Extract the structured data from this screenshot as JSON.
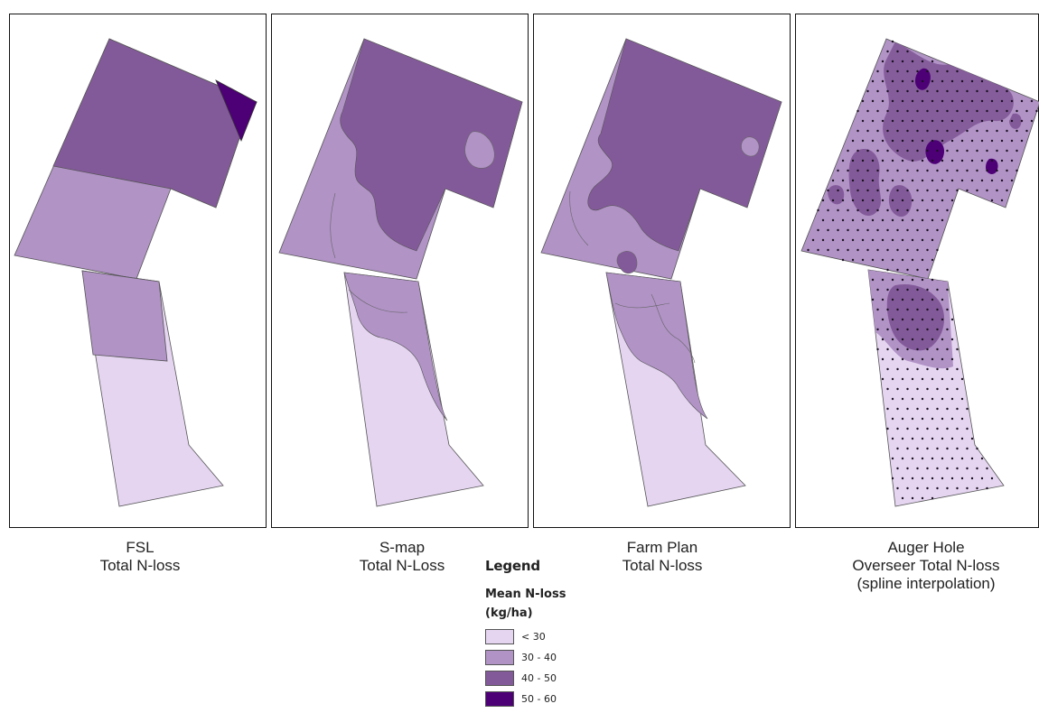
{
  "panels": [
    {
      "caption_line1": "FSL",
      "caption_line2": "Total N-loss",
      "caption_line3": ""
    },
    {
      "caption_line1": "S-map",
      "caption_line2": "Total N-Loss",
      "caption_line3": ""
    },
    {
      "caption_line1": "Farm Plan",
      "caption_line2": "Total N-loss",
      "caption_line3": ""
    },
    {
      "caption_line1": "Auger Hole",
      "caption_line2": "Overseer Total N-loss",
      "caption_line3": "(spline interpolation)"
    }
  ],
  "legend": {
    "title": "Legend",
    "subtitle_line1": "Mean N-loss",
    "subtitle_line2": "(kg/ha)",
    "classes": [
      {
        "label": "< 30",
        "color": "#e5d5f1"
      },
      {
        "label": "30 - 40",
        "color": "#b193c6"
      },
      {
        "label": "40 - 50",
        "color": "#835a99"
      },
      {
        "label": "50 - 60",
        "color": "#4d0076"
      }
    ]
  }
}
